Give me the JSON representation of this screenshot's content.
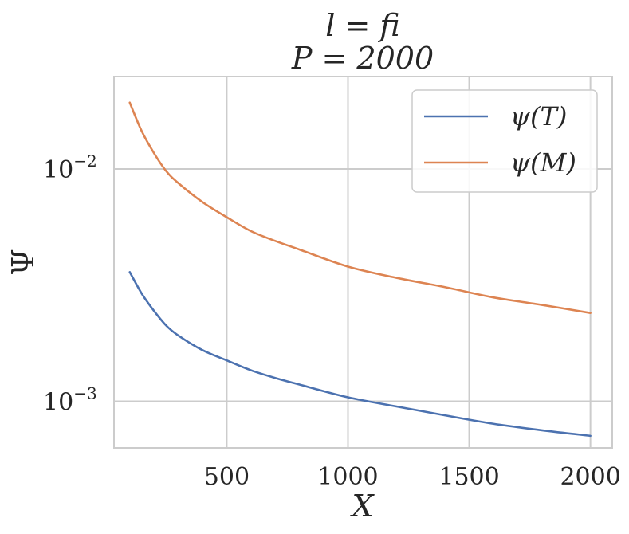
{
  "chart_data": {
    "type": "line",
    "title_line1": "l = fi",
    "title_line2": "P = 2000",
    "xlabel": "X",
    "ylabel": "Ψ",
    "yscale": "log",
    "xlim": [
      35,
      2090
    ],
    "ylim": [
      0.00063,
      0.025
    ],
    "grid": true,
    "legend_position": "top-right",
    "x_ticks": [
      500,
      1000,
      1500,
      2000
    ],
    "x_tick_labels": [
      "500",
      "1000",
      "1500",
      "2000"
    ],
    "y_ticks": [
      0.001,
      0.01
    ],
    "y_tick_labels": [
      {
        "base": "10",
        "exp": "−3"
      },
      {
        "base": "10",
        "exp": "−2"
      }
    ],
    "series": [
      {
        "name": "ψ(T)",
        "color": "#4c72b0",
        "x": [
          100,
          150,
          200,
          250,
          300,
          400,
          500,
          600,
          700,
          800,
          1000,
          1200,
          1400,
          1600,
          1800,
          2000
        ],
        "y": [
          0.0036,
          0.0029,
          0.00245,
          0.00212,
          0.00192,
          0.00166,
          0.0015,
          0.00136,
          0.00126,
          0.00118,
          0.00104,
          0.00095,
          0.00087,
          0.0008,
          0.00075,
          0.00071
        ]
      },
      {
        "name": "ψ(M)",
        "color": "#dd8452",
        "x": [
          100,
          150,
          200,
          250,
          300,
          400,
          500,
          600,
          700,
          800,
          1000,
          1200,
          1400,
          1600,
          1800,
          2000
        ],
        "y": [
          0.0193,
          0.0145,
          0.0117,
          0.0098,
          0.0087,
          0.0072,
          0.0062,
          0.0054,
          0.0049,
          0.0045,
          0.0038,
          0.0034,
          0.0031,
          0.0028,
          0.0026,
          0.0024
        ]
      }
    ]
  }
}
